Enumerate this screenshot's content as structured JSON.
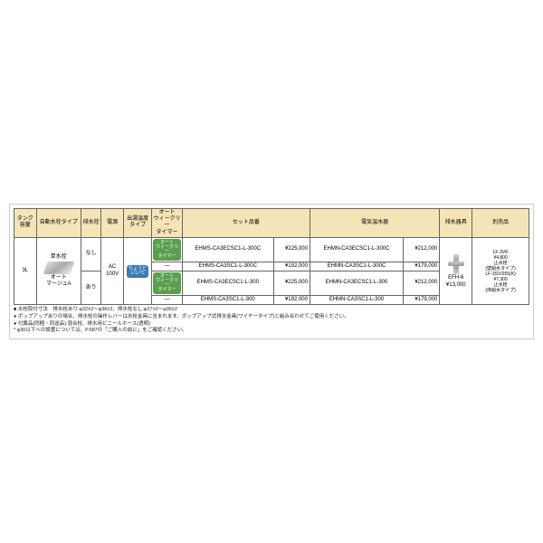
{
  "headers": {
    "tank": "タンク\n容量",
    "faucet_type": "自動水栓タイプ",
    "drain": "排水栓",
    "power": "電源",
    "temp_type": "出湯温度\nタイプ",
    "timer": "オート\nウィークリー\nタイマー",
    "set_part": "セット品番",
    "set_price_h": "",
    "heater": "電気温水器",
    "heater_price_h": "",
    "drain_fix": "排水器具",
    "bessou": "別売品"
  },
  "tank": "3L",
  "faucet_label": "単水栓",
  "faucet_sub": "オート\nマージュA",
  "drain_vals": [
    "なし",
    "あり"
  ],
  "power": "AC\n100V",
  "temp_label": "ちょうど\nいい℃",
  "timer_on": "オート\nウィークリー\nタイマー",
  "timer_off": "—",
  "rows": [
    {
      "set": "EHMS-CA3ECSC1-L-300C",
      "sp": "¥225,000",
      "heat": "EHMN-CA3ECSC1-L-300C",
      "hp": "¥212,000"
    },
    {
      "set": "EHMS-CA3SC1-L-300C",
      "sp": "¥192,000",
      "heat": "EHMN-CA3SC1-L-300C",
      "hp": "¥179,000"
    },
    {
      "set": "EHMS-CA3ECSC1-L-300",
      "sp": "¥225,000",
      "heat": "EHMN-CA3ECSC1-L-300",
      "hp": "¥212,000"
    },
    {
      "set": "EHMS-CA3SC1-L-300",
      "sp": "¥192,000",
      "heat": "EHMN-CA3SC1-L-300",
      "hp": "¥179,000"
    }
  ],
  "drain_fix": {
    "name": "EFH-6",
    "price": "¥13,000"
  },
  "bessou": {
    "l1": "LF-3VK",
    "p1": "¥4,800",
    "t1": "止水栓\n(壁給水タイプ)",
    "l2": "LF-3SV/255(K)",
    "p2": "¥7,300",
    "t2": "止水栓\n(床給水タイプ)"
  },
  "notes": [
    "■ 水栓取付寸法　排水栓あり:φ32±2〜φ36±2、排水栓なし:φ27±2〜φ36±2",
    "● ポップアップありの場合、排水栓の操作レバーは水栓金具に含まれます。ポップアップ式排水金具(ワイヤータイプ)と組み合わせてご使用ください。",
    "● 付属品(同梱・同送品):混合栓、排水用ビニールホース(透明)",
    "* φ30以下への設置については、P.687の「ご購入の前に」をご確認ください。"
  ]
}
